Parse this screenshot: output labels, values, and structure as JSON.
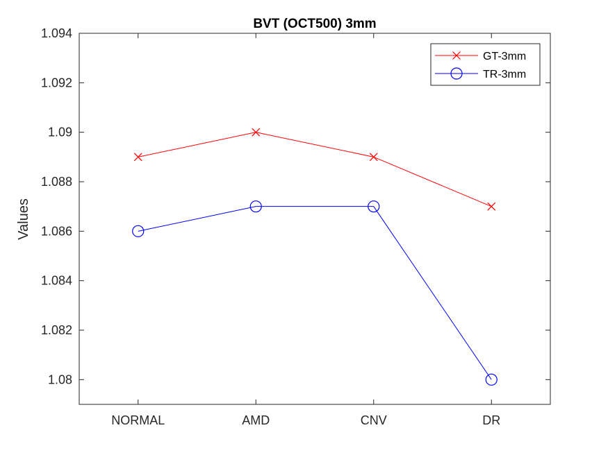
{
  "chart_data": {
    "type": "line",
    "title": "BVT (OCT500) 3mm",
    "xlabel": "",
    "ylabel": "Values",
    "categories": [
      "NORMAL",
      "AMD",
      "CNV",
      "DR"
    ],
    "ylim": [
      1.079,
      1.094
    ],
    "yticks": [
      1.08,
      1.082,
      1.084,
      1.086,
      1.088,
      1.09,
      1.092,
      1.094
    ],
    "ytick_labels": [
      "1.08",
      "1.082",
      "1.084",
      "1.086",
      "1.088",
      "1.09",
      "1.092",
      "1.094"
    ],
    "grid": false,
    "legend_position": "top-right",
    "series": [
      {
        "name": "GT-3mm",
        "values": [
          1.089,
          1.09,
          1.089,
          1.087
        ],
        "color": "#ff0000",
        "marker": "x"
      },
      {
        "name": "TR-3mm",
        "values": [
          1.086,
          1.087,
          1.087,
          1.08
        ],
        "color": "#0000ff",
        "marker": "o"
      }
    ]
  }
}
